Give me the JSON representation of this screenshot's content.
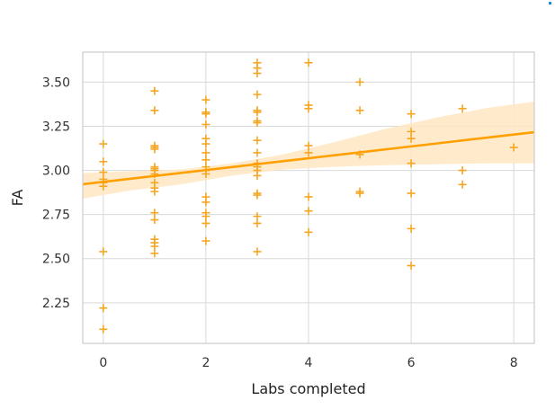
{
  "chart_data": {
    "type": "scatter",
    "title": "",
    "xlabel": "Labs completed",
    "ylabel": "FA",
    "xlim": [
      -0.4,
      8.4
    ],
    "ylim": [
      2.02,
      3.67
    ],
    "xticks": [
      "0",
      "2",
      "4",
      "6",
      "8"
    ],
    "yticks": [
      "2.25",
      "2.50",
      "2.75",
      "3.00",
      "3.25",
      "3.50"
    ],
    "grid": true,
    "legend": "none",
    "marker": "plus",
    "colors": {
      "points": "#f5a623",
      "line": "#ffa000",
      "band": "#ffe7c2",
      "grid": "#d9d9d9",
      "frame": "#cccccc"
    },
    "series": [
      {
        "points": [
          [
            0,
            3.15
          ],
          [
            0,
            3.05
          ],
          [
            0,
            2.99
          ],
          [
            0,
            2.95
          ],
          [
            0,
            2.93
          ],
          [
            0,
            2.91
          ],
          [
            0,
            2.54
          ],
          [
            0,
            2.22
          ],
          [
            0,
            2.1
          ],
          [
            1,
            3.45
          ],
          [
            1,
            3.34
          ],
          [
            1,
            3.14
          ],
          [
            1,
            3.13
          ],
          [
            1,
            3.12
          ],
          [
            1,
            3.02
          ],
          [
            1,
            3.01
          ],
          [
            1,
            3.0
          ],
          [
            1,
            2.98
          ],
          [
            1,
            2.93
          ],
          [
            1,
            2.9
          ],
          [
            1,
            2.88
          ],
          [
            1,
            2.76
          ],
          [
            1,
            2.72
          ],
          [
            1,
            2.61
          ],
          [
            1,
            2.59
          ],
          [
            1,
            2.57
          ],
          [
            1,
            2.53
          ],
          [
            2,
            3.4
          ],
          [
            2,
            3.33
          ],
          [
            2,
            3.32
          ],
          [
            2,
            3.26
          ],
          [
            2,
            3.18
          ],
          [
            2,
            3.15
          ],
          [
            2,
            3.1
          ],
          [
            2,
            3.06
          ],
          [
            2,
            3.02
          ],
          [
            2,
            3.0
          ],
          [
            2,
            2.98
          ],
          [
            2,
            2.85
          ],
          [
            2,
            2.82
          ],
          [
            2,
            2.76
          ],
          [
            2,
            2.74
          ],
          [
            2,
            2.7
          ],
          [
            2,
            2.6
          ],
          [
            3,
            3.61
          ],
          [
            3,
            3.58
          ],
          [
            3,
            3.55
          ],
          [
            3,
            3.43
          ],
          [
            3,
            3.34
          ],
          [
            3,
            3.33
          ],
          [
            3,
            3.28
          ],
          [
            3,
            3.27
          ],
          [
            3,
            3.17
          ],
          [
            3,
            3.1
          ],
          [
            3,
            3.04
          ],
          [
            3,
            3.02
          ],
          [
            3,
            3.0
          ],
          [
            3,
            2.97
          ],
          [
            3,
            2.87
          ],
          [
            3,
            2.86
          ],
          [
            3,
            2.74
          ],
          [
            3,
            2.7
          ],
          [
            3,
            2.54
          ],
          [
            4,
            3.61
          ],
          [
            4,
            3.37
          ],
          [
            4,
            3.35
          ],
          [
            4,
            3.14
          ],
          [
            4,
            3.1
          ],
          [
            4,
            2.85
          ],
          [
            4,
            2.77
          ],
          [
            4,
            2.65
          ],
          [
            5,
            3.5
          ],
          [
            5,
            3.34
          ],
          [
            5,
            3.09
          ],
          [
            5,
            2.88
          ],
          [
            5,
            2.87
          ],
          [
            6,
            3.32
          ],
          [
            6,
            3.22
          ],
          [
            6,
            3.18
          ],
          [
            6,
            3.04
          ],
          [
            6,
            2.87
          ],
          [
            6,
            2.67
          ],
          [
            6,
            2.46
          ],
          [
            7,
            3.35
          ],
          [
            7,
            3.0
          ],
          [
            7,
            2.92
          ],
          [
            8,
            3.13
          ]
        ]
      }
    ],
    "regression": {
      "intercept": 2.935,
      "slope": 0.0335
    },
    "ci_band": [
      {
        "x": -0.4,
        "lo": 2.84,
        "hi": 2.985
      },
      {
        "x": 0.5,
        "lo": 2.885,
        "hi": 2.995
      },
      {
        "x": 1.5,
        "lo": 2.92,
        "hi": 3.005
      },
      {
        "x": 2.5,
        "lo": 2.97,
        "hi": 3.04
      },
      {
        "x": 3.5,
        "lo": 3.005,
        "hi": 3.09
      },
      {
        "x": 4.5,
        "lo": 3.02,
        "hi": 3.16
      },
      {
        "x": 5.5,
        "lo": 3.03,
        "hi": 3.235
      },
      {
        "x": 6.5,
        "lo": 3.035,
        "hi": 3.3
      },
      {
        "x": 7.5,
        "lo": 3.04,
        "hi": 3.355
      },
      {
        "x": 8.4,
        "lo": 3.04,
        "hi": 3.39
      }
    ]
  }
}
